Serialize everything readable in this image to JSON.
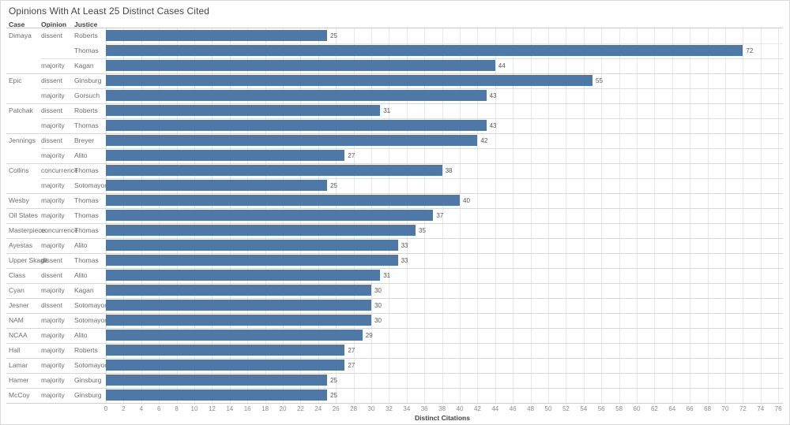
{
  "title": "Opinions With At Least 25 Distinct Cases Cited",
  "columns": [
    "Case",
    "Opinion",
    "Justice"
  ],
  "axis": {
    "label": "Distinct Citations"
  },
  "colors": {
    "bar": "#4e79a7"
  },
  "chart_data": {
    "type": "bar",
    "orientation": "horizontal",
    "title": "Opinions With At Least 25 Distinct Cases Cited",
    "xlabel": "Distinct Citations",
    "xlim": [
      0,
      76
    ],
    "tick_step": 2,
    "grid": true,
    "bar_color": "#4e79a7",
    "row_headers": [
      "Case",
      "Opinion",
      "Justice"
    ],
    "rows": [
      {
        "case": "Dimaya",
        "opinion": "dissent",
        "justice": "Roberts",
        "value": 25
      },
      {
        "case": "",
        "opinion": "",
        "justice": "Thomas",
        "value": 72
      },
      {
        "case": "",
        "opinion": "majority",
        "justice": "Kagan",
        "value": 44
      },
      {
        "case": "Epic",
        "opinion": "dissent",
        "justice": "Ginsburg",
        "value": 55
      },
      {
        "case": "",
        "opinion": "majority",
        "justice": "Gorsuch",
        "value": 43
      },
      {
        "case": "Patchak",
        "opinion": "dissent",
        "justice": "Roberts",
        "value": 31
      },
      {
        "case": "",
        "opinion": "majority",
        "justice": "Thomas",
        "value": 43
      },
      {
        "case": "Jennings",
        "opinion": "dissent",
        "justice": "Breyer",
        "value": 42
      },
      {
        "case": "",
        "opinion": "majority",
        "justice": "Alito",
        "value": 27
      },
      {
        "case": "Collins",
        "opinion": "concurrence",
        "justice": "Thomas",
        "value": 38
      },
      {
        "case": "",
        "opinion": "majority",
        "justice": "Sotomayor",
        "value": 25
      },
      {
        "case": "Wesby",
        "opinion": "majority",
        "justice": "Thomas",
        "value": 40
      },
      {
        "case": "Oil States",
        "opinion": "majority",
        "justice": "Thomas",
        "value": 37
      },
      {
        "case": "Masterpiece",
        "opinion": "concurrence",
        "justice": "Thomas",
        "value": 35
      },
      {
        "case": "Ayestas",
        "opinion": "majority",
        "justice": "Alito",
        "value": 33
      },
      {
        "case": "Upper Skagit",
        "opinion": "dissent",
        "justice": "Thomas",
        "value": 33
      },
      {
        "case": "Class",
        "opinion": "dissent",
        "justice": "Alito",
        "value": 31
      },
      {
        "case": "Cyan",
        "opinion": "majority",
        "justice": "Kagan",
        "value": 30
      },
      {
        "case": "Jesner",
        "opinion": "dissent",
        "justice": "Sotomayor",
        "value": 30
      },
      {
        "case": "NAM",
        "opinion": "majority",
        "justice": "Sotomayor",
        "value": 30
      },
      {
        "case": "NCAA",
        "opinion": "majority",
        "justice": "Alito",
        "value": 29
      },
      {
        "case": "Hall",
        "opinion": "majority",
        "justice": "Roberts",
        "value": 27
      },
      {
        "case": "Lamar",
        "opinion": "majority",
        "justice": "Sotomayor",
        "value": 27
      },
      {
        "case": "Hamer",
        "opinion": "majority",
        "justice": "Ginsburg",
        "value": 25
      },
      {
        "case": "McCoy",
        "opinion": "majority",
        "justice": "Ginsburg",
        "value": 25
      }
    ]
  }
}
